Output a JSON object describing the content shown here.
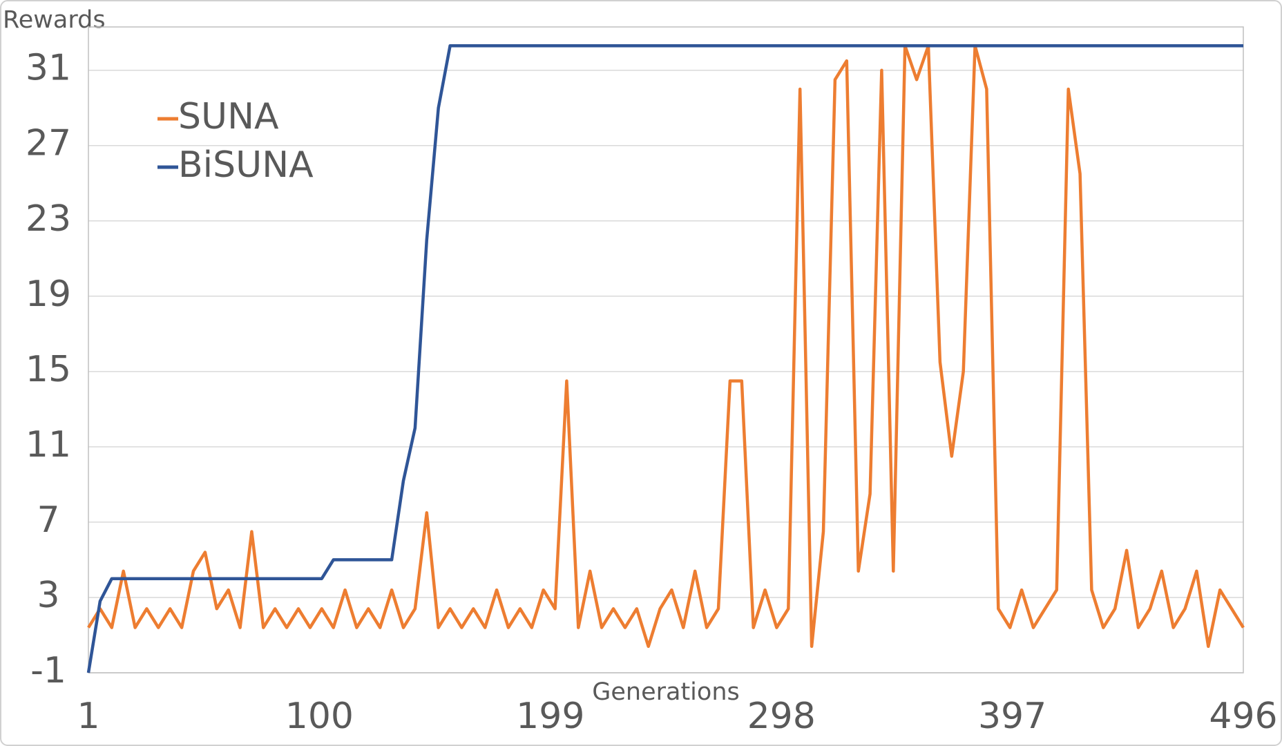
{
  "chart_data": {
    "type": "line",
    "y_label": "Rewards",
    "x_label": "Generations",
    "x": [
      1,
      6,
      11,
      16,
      21,
      26,
      31,
      36,
      41,
      46,
      51,
      56,
      61,
      66,
      71,
      76,
      81,
      86,
      91,
      96,
      101,
      106,
      111,
      116,
      121,
      126,
      131,
      136,
      141,
      146,
      151,
      156,
      161,
      166,
      171,
      176,
      181,
      186,
      191,
      196,
      201,
      206,
      211,
      216,
      221,
      226,
      231,
      236,
      241,
      246,
      251,
      256,
      261,
      266,
      271,
      276,
      281,
      286,
      291,
      296,
      301,
      306,
      311,
      316,
      321,
      326,
      331,
      336,
      341,
      346,
      351,
      356,
      361,
      366,
      371,
      376,
      381,
      386,
      391,
      396,
      401,
      406,
      411,
      416,
      421,
      426,
      431,
      436,
      441,
      446,
      451,
      456,
      461,
      466,
      471,
      476,
      481,
      486,
      491,
      496
    ],
    "series": [
      {
        "name": "SUNA",
        "color": "#ed7d31",
        "values": [
          1.4,
          2.4,
          1.4,
          4.4,
          1.4,
          2.4,
          1.4,
          2.4,
          1.4,
          4.4,
          5.4,
          2.4,
          3.4,
          1.4,
          6.5,
          1.4,
          2.4,
          1.4,
          2.4,
          1.4,
          2.4,
          1.4,
          3.4,
          1.4,
          2.4,
          1.4,
          3.4,
          1.4,
          2.4,
          7.5,
          1.4,
          2.4,
          1.4,
          2.4,
          1.4,
          3.4,
          1.4,
          2.4,
          1.4,
          3.4,
          2.4,
          14.5,
          1.4,
          4.4,
          1.4,
          2.4,
          1.4,
          2.4,
          0.4,
          2.4,
          3.4,
          1.4,
          4.4,
          1.4,
          2.4,
          14.5,
          14.5,
          1.4,
          3.4,
          1.4,
          2.4,
          30,
          0.4,
          6.5,
          30.5,
          31.5,
          4.4,
          8.5,
          31,
          4.4,
          32.3,
          30.5,
          32.3,
          15.5,
          10.5,
          15,
          32.3,
          30,
          2.4,
          1.4,
          3.4,
          1.4,
          2.4,
          3.4,
          30,
          25.5,
          3.4,
          1.4,
          2.4,
          5.5,
          1.4,
          2.4,
          4.4,
          1.4,
          2.4,
          4.4,
          0.4,
          3.4,
          2.4,
          1.4
        ]
      },
      {
        "name": "BiSUNA",
        "color": "#2f5597",
        "values": [
          -1,
          2.8,
          4,
          4,
          4,
          4,
          4,
          4,
          4,
          4,
          4,
          4,
          4,
          4,
          4,
          4,
          4,
          4,
          4,
          4,
          4,
          5,
          5,
          5,
          5,
          5,
          5,
          9.2,
          12,
          22,
          29,
          32.3,
          32.3,
          32.3,
          32.3,
          32.3,
          32.3,
          32.3,
          32.3,
          32.3,
          32.3,
          32.3,
          32.3,
          32.3,
          32.3,
          32.3,
          32.3,
          32.3,
          32.3,
          32.3,
          32.3,
          32.3,
          32.3,
          32.3,
          32.3,
          32.3,
          32.3,
          32.3,
          32.3,
          32.3,
          32.3,
          32.3,
          32.3,
          32.3,
          32.3,
          32.3,
          32.3,
          32.3,
          32.3,
          32.3,
          32.3,
          32.3,
          32.3,
          32.3,
          32.3,
          32.3,
          32.3,
          32.3,
          32.3,
          32.3,
          32.3,
          32.3,
          32.3,
          32.3,
          32.3,
          32.3,
          32.3,
          32.3,
          32.3,
          32.3,
          32.3,
          32.3,
          32.3,
          32.3,
          32.3,
          32.3,
          32.3,
          32.3,
          32.3,
          32.3
        ]
      }
    ],
    "xlim": [
      1,
      496
    ],
    "xticks": [
      1,
      100,
      199,
      298,
      397,
      496
    ],
    "ylim": [
      -1,
      33.3
    ],
    "yticks": [
      -1,
      3,
      7,
      11,
      15,
      19,
      23,
      27,
      31
    ],
    "grid": true,
    "legend": "upper left"
  }
}
